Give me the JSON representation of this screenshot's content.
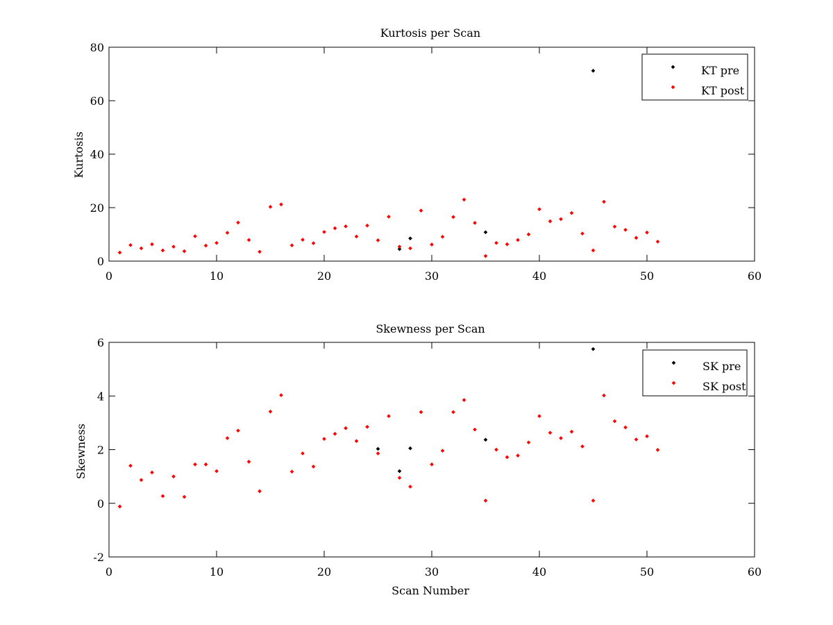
{
  "figure": {
    "background": "#ffffff"
  },
  "chart_data": [
    {
      "type": "scatter",
      "title": "Kurtosis per Scan",
      "xlabel": "",
      "ylabel": "Kurtosis",
      "xlim": [
        0,
        60
      ],
      "ylim": [
        0,
        80
      ],
      "xticks": [
        0,
        10,
        20,
        30,
        40,
        50,
        60
      ],
      "yticks": [
        0,
        20,
        40,
        60,
        80
      ],
      "grid": false,
      "legend": {
        "placement": "top-right",
        "entries": [
          "KT pre",
          "KT post"
        ]
      },
      "series": [
        {
          "name": "KT pre",
          "color": "#000000",
          "points": [
            [
              27,
              4.5
            ],
            [
              28,
              8.5
            ],
            [
              35,
              10.8
            ],
            [
              45,
              71.2
            ]
          ]
        },
        {
          "name": "KT post",
          "color": "#ff0000",
          "points": [
            [
              1,
              3.2
            ],
            [
              2,
              6.0
            ],
            [
              3,
              4.8
            ],
            [
              4,
              6.3
            ],
            [
              5,
              4.0
            ],
            [
              6,
              5.4
            ],
            [
              7,
              3.7
            ],
            [
              8,
              9.3
            ],
            [
              9,
              5.8
            ],
            [
              10,
              6.8
            ],
            [
              11,
              10.6
            ],
            [
              12,
              14.4
            ],
            [
              13,
              7.9
            ],
            [
              14,
              3.5
            ],
            [
              15,
              20.3
            ],
            [
              16,
              21.2
            ],
            [
              17,
              5.9
            ],
            [
              18,
              8.0
            ],
            [
              19,
              6.7
            ],
            [
              20,
              10.9
            ],
            [
              21,
              12.3
            ],
            [
              22,
              13.0
            ],
            [
              23,
              9.2
            ],
            [
              24,
              13.3
            ],
            [
              25,
              7.8
            ],
            [
              26,
              16.6
            ],
            [
              27,
              5.4
            ],
            [
              28,
              4.8
            ],
            [
              29,
              18.9
            ],
            [
              30,
              6.2
            ],
            [
              31,
              9.1
            ],
            [
              32,
              16.5
            ],
            [
              33,
              23.0
            ],
            [
              34,
              14.3
            ],
            [
              35,
              1.9
            ],
            [
              36,
              6.8
            ],
            [
              37,
              6.3
            ],
            [
              38,
              7.9
            ],
            [
              39,
              10.0
            ],
            [
              40,
              19.4
            ],
            [
              41,
              14.9
            ],
            [
              42,
              15.7
            ],
            [
              43,
              18.0
            ],
            [
              44,
              10.3
            ],
            [
              45,
              4.0
            ],
            [
              46,
              22.2
            ],
            [
              47,
              12.9
            ],
            [
              48,
              11.7
            ],
            [
              49,
              8.7
            ],
            [
              50,
              10.7
            ],
            [
              51,
              7.3
            ]
          ]
        }
      ]
    },
    {
      "type": "scatter",
      "title": "Skewness per Scan",
      "xlabel": "Scan Number",
      "ylabel": "Skewness",
      "xlim": [
        0,
        60
      ],
      "ylim": [
        -2,
        6
      ],
      "xticks": [
        0,
        10,
        20,
        30,
        40,
        50,
        60
      ],
      "yticks": [
        -2,
        0,
        2,
        4,
        6
      ],
      "grid": false,
      "legend": {
        "placement": "top-right",
        "entries": [
          "SK pre",
          "SK post"
        ]
      },
      "series": [
        {
          "name": "SK pre",
          "color": "#000000",
          "points": [
            [
              25,
              2.03
            ],
            [
              27,
              1.2
            ],
            [
              28,
              2.05
            ],
            [
              35,
              2.37
            ],
            [
              45,
              5.75
            ]
          ]
        },
        {
          "name": "SK post",
          "color": "#ff0000",
          "points": [
            [
              1,
              -0.12
            ],
            [
              2,
              1.4
            ],
            [
              3,
              0.87
            ],
            [
              4,
              1.15
            ],
            [
              5,
              0.27
            ],
            [
              6,
              1.0
            ],
            [
              7,
              0.24
            ],
            [
              8,
              1.45
            ],
            [
              9,
              1.45
            ],
            [
              10,
              1.2
            ],
            [
              11,
              2.43
            ],
            [
              12,
              2.71
            ],
            [
              13,
              1.55
            ],
            [
              14,
              0.45
            ],
            [
              15,
              3.42
            ],
            [
              16,
              4.03
            ],
            [
              17,
              1.18
            ],
            [
              18,
              1.86
            ],
            [
              19,
              1.37
            ],
            [
              20,
              2.4
            ],
            [
              21,
              2.59
            ],
            [
              22,
              2.8
            ],
            [
              23,
              2.32
            ],
            [
              24,
              2.85
            ],
            [
              25,
              1.86
            ],
            [
              26,
              3.25
            ],
            [
              27,
              0.95
            ],
            [
              28,
              0.62
            ],
            [
              29,
              3.4
            ],
            [
              30,
              1.45
            ],
            [
              31,
              1.96
            ],
            [
              32,
              3.4
            ],
            [
              33,
              3.85
            ],
            [
              34,
              2.75
            ],
            [
              35,
              0.1
            ],
            [
              36,
              2.0
            ],
            [
              37,
              1.72
            ],
            [
              38,
              1.78
            ],
            [
              39,
              2.27
            ],
            [
              40,
              3.25
            ],
            [
              41,
              2.63
            ],
            [
              42,
              2.43
            ],
            [
              43,
              2.67
            ],
            [
              44,
              2.12
            ],
            [
              45,
              0.1
            ],
            [
              46,
              4.02
            ],
            [
              47,
              3.06
            ],
            [
              48,
              2.83
            ],
            [
              49,
              2.38
            ],
            [
              50,
              2.5
            ],
            [
              51,
              1.99
            ]
          ]
        }
      ]
    }
  ]
}
